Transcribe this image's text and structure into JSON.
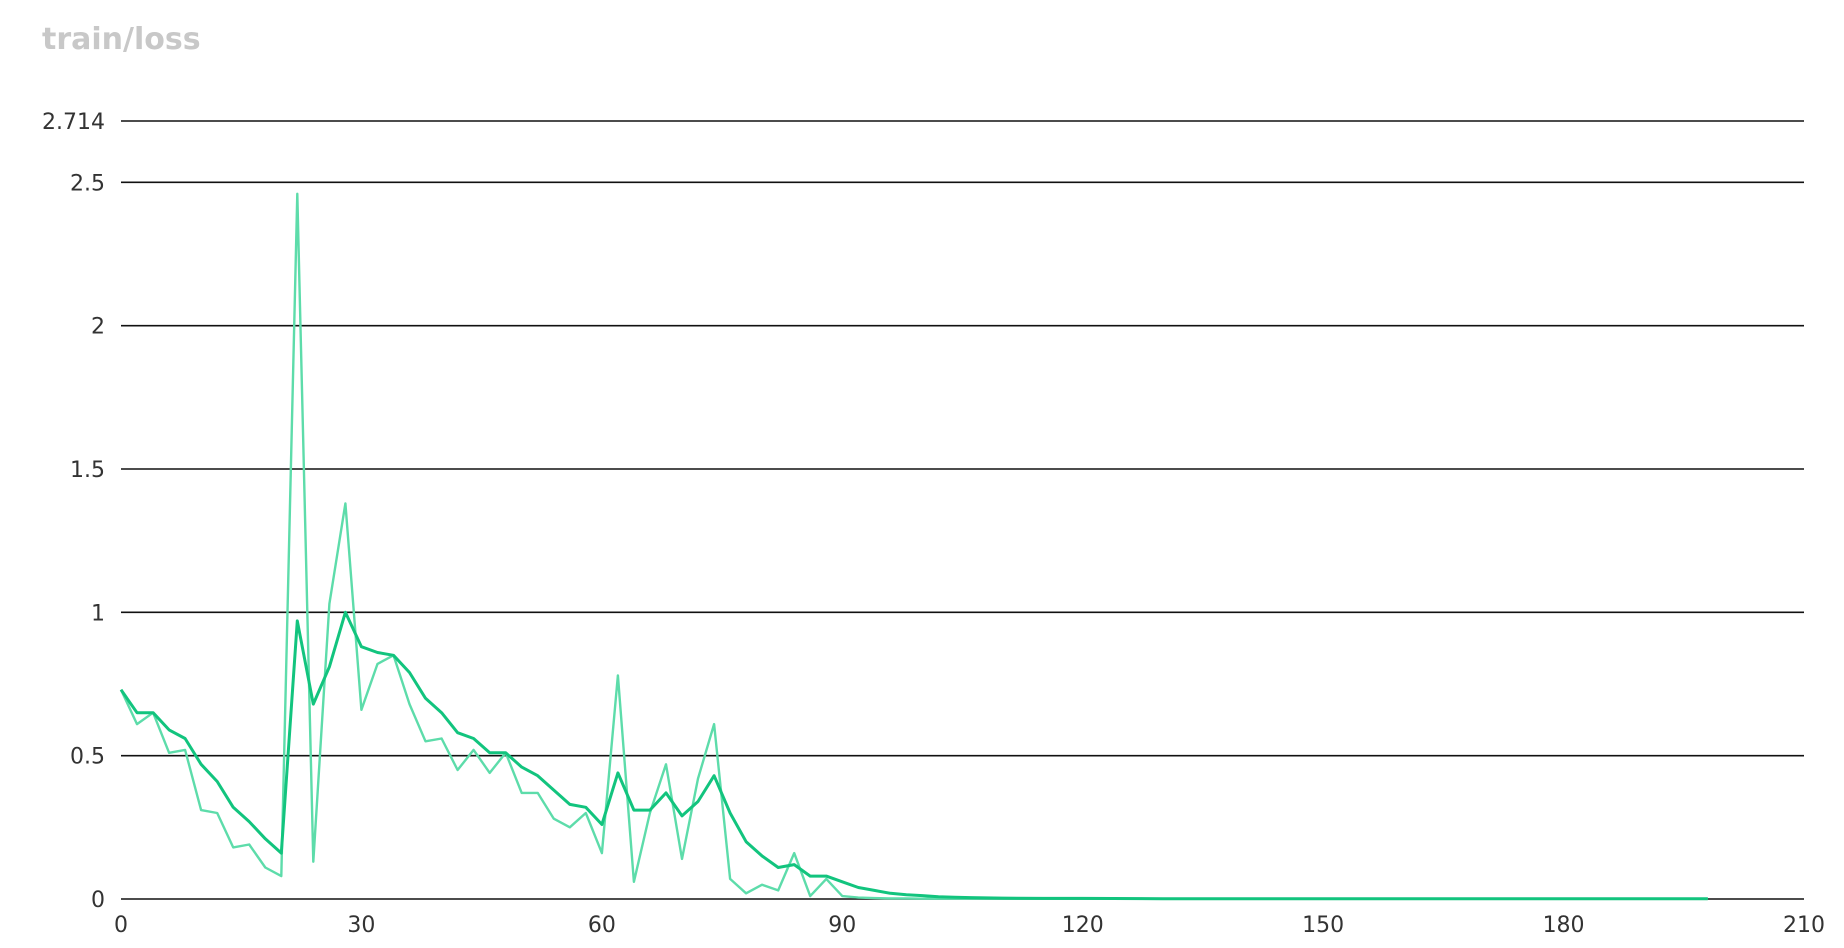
{
  "chart_data": {
    "type": "line",
    "title": "train/loss",
    "xlabel": "",
    "ylabel": "",
    "xlim": [
      0,
      210
    ],
    "ylim": [
      0,
      2.714
    ],
    "x_ticks": [
      "0",
      "30",
      "60",
      "90",
      "120",
      "150",
      "180",
      "210"
    ],
    "y_ticks": [
      "0",
      "0.5",
      "1",
      "1.5",
      "2",
      "2.5",
      "2.714"
    ],
    "grid": "horizontal",
    "legend": "none",
    "colors": {
      "raw": "#5ddcaa",
      "smoothed": "#12c47e"
    },
    "series": [
      {
        "role": "raw",
        "x": [
          0,
          2,
          4,
          6,
          8,
          10,
          12,
          14,
          16,
          18,
          20,
          22,
          24,
          26,
          28,
          30,
          32,
          34,
          36,
          38,
          40,
          42,
          44,
          46,
          48,
          50,
          52,
          54,
          56,
          58,
          60,
          62,
          64,
          66,
          68,
          70,
          72,
          74,
          76,
          78,
          80,
          82,
          84,
          86,
          88,
          90,
          92,
          94,
          96,
          98,
          100,
          102,
          104,
          106,
          108,
          110,
          115,
          120,
          130,
          140,
          150,
          160,
          170,
          180,
          190,
          198
        ],
        "y": [
          0.73,
          0.61,
          0.65,
          0.51,
          0.52,
          0.31,
          0.3,
          0.18,
          0.19,
          0.11,
          0.08,
          2.46,
          0.13,
          1.03,
          1.38,
          0.66,
          0.82,
          0.85,
          0.68,
          0.55,
          0.56,
          0.45,
          0.52,
          0.44,
          0.51,
          0.37,
          0.37,
          0.28,
          0.25,
          0.3,
          0.16,
          0.78,
          0.06,
          0.3,
          0.47,
          0.14,
          0.42,
          0.61,
          0.07,
          0.02,
          0.05,
          0.03,
          0.16,
          0.01,
          0.07,
          0.01,
          0.005,
          0.003,
          0.002,
          0.002,
          0.001,
          0.001,
          0.001,
          0.001,
          0.001,
          0.001,
          0.001,
          0.001,
          0.001,
          0.001,
          0.001,
          0.001,
          0.001,
          0.001,
          0.001,
          0.001
        ]
      },
      {
        "role": "smoothed",
        "x": [
          0,
          2,
          4,
          6,
          8,
          10,
          12,
          14,
          16,
          18,
          20,
          22,
          24,
          26,
          28,
          30,
          32,
          34,
          36,
          38,
          40,
          42,
          44,
          46,
          48,
          50,
          52,
          54,
          56,
          58,
          60,
          62,
          64,
          66,
          68,
          70,
          72,
          74,
          76,
          78,
          80,
          82,
          84,
          86,
          88,
          90,
          92,
          94,
          96,
          98,
          100,
          102,
          104,
          106,
          108,
          110,
          115,
          120,
          130,
          140,
          150,
          160,
          170,
          180,
          190,
          198
        ],
        "y": [
          0.73,
          0.65,
          0.65,
          0.59,
          0.56,
          0.47,
          0.41,
          0.32,
          0.27,
          0.21,
          0.16,
          0.97,
          0.68,
          0.81,
          1.0,
          0.88,
          0.86,
          0.85,
          0.79,
          0.7,
          0.65,
          0.58,
          0.56,
          0.51,
          0.51,
          0.46,
          0.43,
          0.38,
          0.33,
          0.32,
          0.26,
          0.44,
          0.31,
          0.31,
          0.37,
          0.29,
          0.34,
          0.43,
          0.3,
          0.2,
          0.15,
          0.11,
          0.12,
          0.08,
          0.08,
          0.06,
          0.04,
          0.03,
          0.02,
          0.015,
          0.012,
          0.008,
          0.006,
          0.005,
          0.004,
          0.003,
          0.002,
          0.002,
          0.001,
          0.001,
          0.001,
          0.001,
          0.001,
          0.001,
          0.001,
          0.001
        ]
      }
    ]
  }
}
